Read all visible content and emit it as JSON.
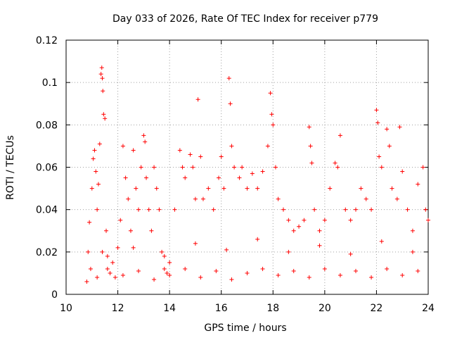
{
  "chart_data": {
    "type": "scatter",
    "title": "Day 033 of 2026, Rate Of TEC Index for receiver p779",
    "xlabel": "GPS time / hours",
    "ylabel": "ROTI / TECUs",
    "xlim": [
      10,
      24
    ],
    "ylim": [
      0,
      0.12
    ],
    "grid": true,
    "marker": "+",
    "color": "#ff0000",
    "x_ticks": [
      10,
      12,
      14,
      16,
      18,
      20,
      22,
      24
    ],
    "x_tick_labels": [
      "10",
      "12",
      "14",
      "16",
      "18",
      "20",
      "22",
      "24"
    ],
    "y_ticks": [
      0,
      0.02,
      0.04,
      0.06,
      0.08,
      0.1,
      0.12
    ],
    "y_tick_labels": [
      "0",
      "0.02",
      "0.04",
      "0.06",
      "0.08",
      "0.1",
      "0.12"
    ],
    "series": [
      {
        "name": "ROTI",
        "points": [
          [
            10.8,
            0.006
          ],
          [
            10.85,
            0.02
          ],
          [
            10.9,
            0.034
          ],
          [
            10.95,
            0.012
          ],
          [
            11.0,
            0.05
          ],
          [
            11.05,
            0.064
          ],
          [
            11.1,
            0.068
          ],
          [
            11.15,
            0.058
          ],
          [
            11.2,
            0.04
          ],
          [
            11.25,
            0.052
          ],
          [
            11.3,
            0.071
          ],
          [
            11.35,
            0.104
          ],
          [
            11.38,
            0.107
          ],
          [
            11.4,
            0.102
          ],
          [
            11.42,
            0.096
          ],
          [
            11.45,
            0.085
          ],
          [
            11.5,
            0.083
          ],
          [
            11.55,
            0.03
          ],
          [
            11.6,
            0.018
          ],
          [
            11.7,
            0.01
          ],
          [
            11.8,
            0.015
          ],
          [
            11.9,
            0.008
          ],
          [
            12.0,
            0.022
          ],
          [
            12.1,
            0.035
          ],
          [
            12.2,
            0.07
          ],
          [
            12.3,
            0.055
          ],
          [
            12.4,
            0.045
          ],
          [
            12.5,
            0.03
          ],
          [
            12.6,
            0.068
          ],
          [
            12.7,
            0.05
          ],
          [
            12.8,
            0.04
          ],
          [
            12.9,
            0.06
          ],
          [
            13.0,
            0.075
          ],
          [
            13.05,
            0.072
          ],
          [
            13.1,
            0.055
          ],
          [
            13.2,
            0.04
          ],
          [
            13.3,
            0.03
          ],
          [
            13.4,
            0.06
          ],
          [
            13.5,
            0.05
          ],
          [
            13.6,
            0.04
          ],
          [
            13.7,
            0.02
          ],
          [
            13.8,
            0.012
          ],
          [
            13.9,
            0.01
          ],
          [
            14.0,
            0.015
          ],
          [
            14.2,
            0.04
          ],
          [
            14.4,
            0.068
          ],
          [
            14.5,
            0.06
          ],
          [
            14.6,
            0.055
          ],
          [
            14.8,
            0.066
          ],
          [
            14.9,
            0.06
          ],
          [
            15.0,
            0.045
          ],
          [
            15.1,
            0.092
          ],
          [
            15.2,
            0.065
          ],
          [
            15.3,
            0.045
          ],
          [
            15.5,
            0.05
          ],
          [
            15.7,
            0.04
          ],
          [
            15.9,
            0.055
          ],
          [
            16.0,
            0.065
          ],
          [
            16.1,
            0.05
          ],
          [
            16.3,
            0.102
          ],
          [
            16.35,
            0.09
          ],
          [
            16.4,
            0.07
          ],
          [
            16.5,
            0.06
          ],
          [
            16.7,
            0.055
          ],
          [
            16.8,
            0.06
          ],
          [
            17.0,
            0.05
          ],
          [
            17.2,
            0.057
          ],
          [
            17.4,
            0.05
          ],
          [
            17.6,
            0.058
          ],
          [
            17.8,
            0.07
          ],
          [
            17.9,
            0.095
          ],
          [
            17.95,
            0.085
          ],
          [
            18.0,
            0.08
          ],
          [
            18.1,
            0.06
          ],
          [
            18.2,
            0.045
          ],
          [
            18.4,
            0.04
          ],
          [
            18.6,
            0.035
          ],
          [
            18.8,
            0.03
          ],
          [
            19.0,
            0.032
          ],
          [
            19.2,
            0.035
          ],
          [
            19.4,
            0.079
          ],
          [
            19.45,
            0.07
          ],
          [
            19.5,
            0.062
          ],
          [
            19.6,
            0.04
          ],
          [
            19.8,
            0.03
          ],
          [
            20.0,
            0.035
          ],
          [
            20.2,
            0.05
          ],
          [
            20.4,
            0.062
          ],
          [
            20.5,
            0.06
          ],
          [
            20.6,
            0.075
          ],
          [
            20.8,
            0.04
          ],
          [
            21.0,
            0.035
          ],
          [
            21.2,
            0.04
          ],
          [
            21.4,
            0.05
          ],
          [
            21.6,
            0.045
          ],
          [
            21.8,
            0.04
          ],
          [
            22.0,
            0.087
          ],
          [
            22.05,
            0.081
          ],
          [
            22.1,
            0.065
          ],
          [
            22.2,
            0.06
          ],
          [
            22.4,
            0.078
          ],
          [
            22.5,
            0.07
          ],
          [
            22.6,
            0.05
          ],
          [
            22.8,
            0.045
          ],
          [
            22.9,
            0.079
          ],
          [
            23.0,
            0.058
          ],
          [
            23.2,
            0.04
          ],
          [
            23.4,
            0.03
          ],
          [
            23.6,
            0.052
          ],
          [
            23.8,
            0.06
          ],
          [
            23.9,
            0.04
          ],
          [
            24.0,
            0.035
          ],
          [
            11.2,
            0.008
          ],
          [
            11.6,
            0.012
          ],
          [
            12.2,
            0.009
          ],
          [
            12.8,
            0.011
          ],
          [
            13.4,
            0.007
          ],
          [
            14.0,
            0.009
          ],
          [
            14.6,
            0.012
          ],
          [
            15.2,
            0.008
          ],
          [
            15.8,
            0.011
          ],
          [
            16.4,
            0.007
          ],
          [
            17.0,
            0.01
          ],
          [
            17.6,
            0.012
          ],
          [
            18.2,
            0.009
          ],
          [
            18.8,
            0.011
          ],
          [
            19.4,
            0.008
          ],
          [
            20.0,
            0.012
          ],
          [
            20.6,
            0.009
          ],
          [
            21.2,
            0.011
          ],
          [
            21.8,
            0.008
          ],
          [
            22.4,
            0.012
          ],
          [
            23.0,
            0.009
          ],
          [
            23.6,
            0.011
          ],
          [
            11.4,
            0.02
          ],
          [
            12.6,
            0.022
          ],
          [
            13.8,
            0.018
          ],
          [
            15.0,
            0.024
          ],
          [
            16.2,
            0.021
          ],
          [
            17.4,
            0.026
          ],
          [
            18.6,
            0.02
          ],
          [
            19.8,
            0.023
          ],
          [
            21.0,
            0.019
          ],
          [
            22.2,
            0.025
          ],
          [
            23.4,
            0.02
          ]
        ]
      }
    ]
  }
}
